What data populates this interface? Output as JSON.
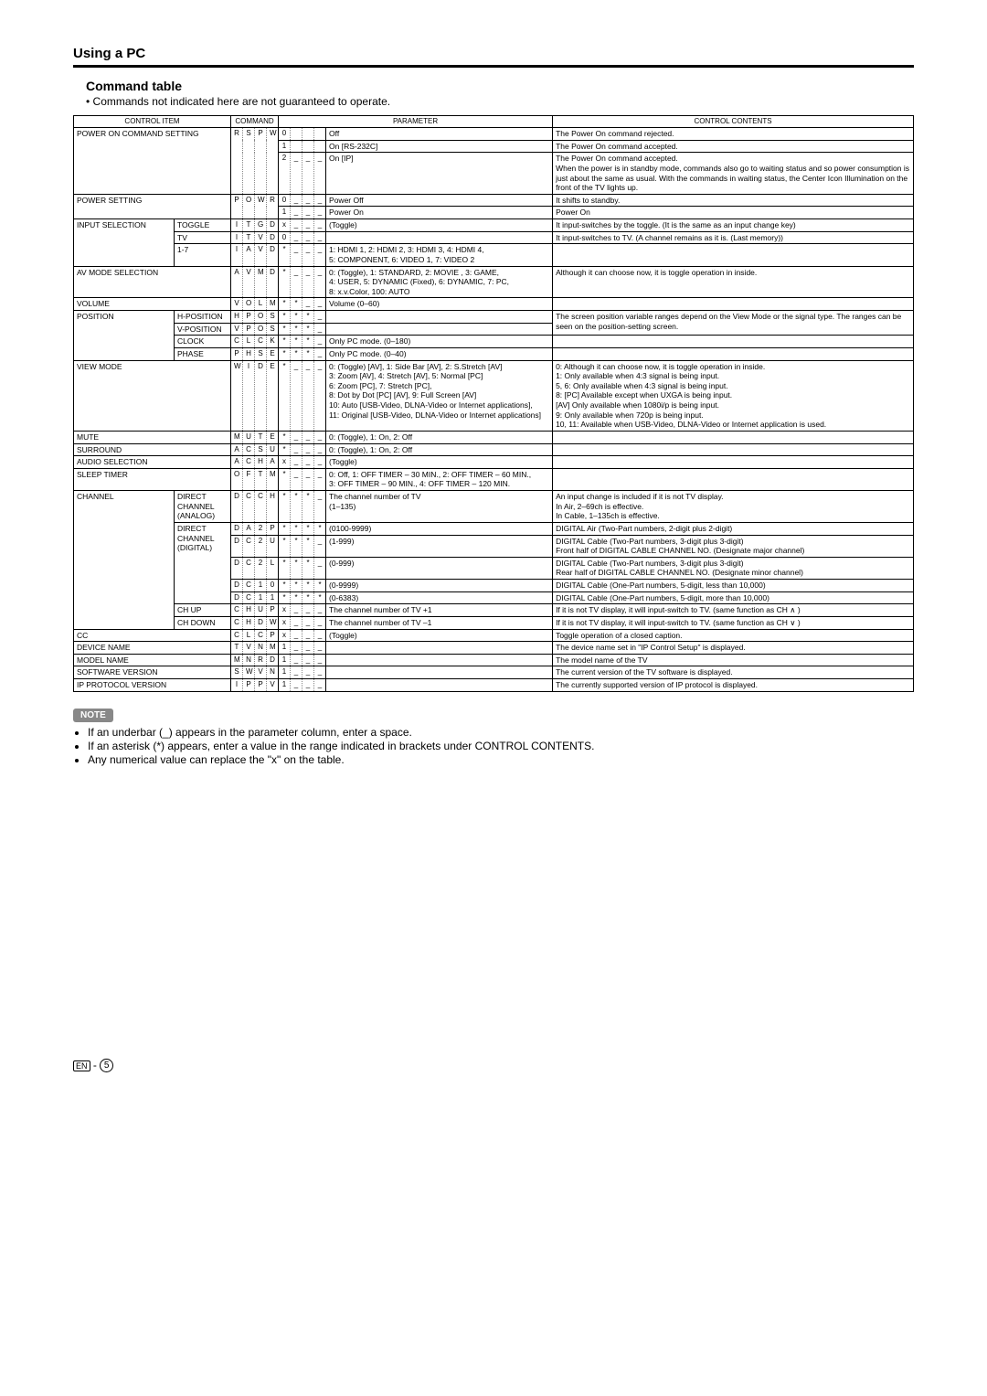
{
  "page": {
    "section_title": "Using a PC",
    "sub_title": "Command table",
    "sub_desc": "• Commands not indicated here are not guaranteed to operate.",
    "note_badge": "NOTE",
    "notes": [
      "If an underbar (_) appears in the parameter column, enter a space.",
      "If an asterisk (*) appears, enter a value in the range indicated in brackets under CONTROL CONTENTS.",
      "Any numerical value can replace the \"x\" on the table."
    ],
    "footer_en": "EN",
    "footer_page": "5"
  },
  "headers": {
    "control_item": "CONTROL ITEM",
    "command": "COMMAND",
    "parameter": "PARAMETER",
    "control_contents": "CONTROL CONTENTS"
  },
  "colwidths": {
    "item1": 110,
    "item2": 62,
    "cmd": 13,
    "desc": 248,
    "contents": 340
  },
  "rows": [
    {
      "i1": "POWER ON COMMAND SETTING",
      "i1rs": 3,
      "i1cs": 2,
      "c": [
        "R",
        "S",
        "P",
        "W"
      ],
      "crs": 3,
      "p": [
        "0",
        "",
        "",
        ""
      ],
      "d": "Off",
      "cc": "The Power On command rejected."
    },
    {
      "p": [
        "1",
        "",
        "",
        ""
      ],
      "d": "On [RS-232C]",
      "cc": "The Power On command accepted."
    },
    {
      "p": [
        "2",
        "_",
        "_",
        "_"
      ],
      "d": "On [IP]",
      "cc": "The Power On command accepted.\nWhen the power is in standby mode, commands also go to waiting status and so power consumption is just about the same as usual. With the commands in waiting status, the Center Icon Illumination on the front of the TV lights up."
    },
    {
      "i1": "POWER SETTING",
      "i1rs": 2,
      "i1cs": 2,
      "c": [
        "P",
        "O",
        "W",
        "R"
      ],
      "crs": 2,
      "p": [
        "0",
        "_",
        "_",
        "_"
      ],
      "d": "Power Off",
      "cc": "It shifts to standby."
    },
    {
      "p": [
        "1",
        "_",
        "_",
        "_"
      ],
      "d": "Power On",
      "cc": "Power On"
    },
    {
      "i1": "INPUT SELECTION",
      "i1rs": 3,
      "i2": "TOGGLE",
      "c": [
        "I",
        "T",
        "G",
        "D"
      ],
      "p": [
        "x",
        "_",
        "_",
        "_"
      ],
      "d": "(Toggle)",
      "cc": "It input-switches by the toggle. (It is the same as an input change key)"
    },
    {
      "i2": "TV",
      "c": [
        "I",
        "T",
        "V",
        "D"
      ],
      "p": [
        "0",
        "_",
        "_",
        "_"
      ],
      "d": "",
      "cc": "It input-switches to TV. (A channel remains as it is. (Last memory))"
    },
    {
      "i2": "1-7",
      "c": [
        "I",
        "A",
        "V",
        "D"
      ],
      "p": [
        "*",
        "_",
        "_",
        "_"
      ],
      "d": "1: HDMI 1, 2: HDMI 2, 3: HDMI 3, 4: HDMI 4,\n5: COMPONENT, 6: VIDEO 1, 7: VIDEO 2",
      "cc": ""
    },
    {
      "i1": "AV MODE SELECTION",
      "i1cs": 2,
      "c": [
        "A",
        "V",
        "M",
        "D"
      ],
      "p": [
        "*",
        "_",
        "_",
        "_"
      ],
      "d": "0: (Toggle), 1: STANDARD, 2: MOVIE , 3: GAME,\n4: USER, 5: DYNAMIC (Fixed), 6: DYNAMIC, 7: PC,\n8: x.v.Color, 100: AUTO",
      "cc": "Although it can choose now, it is toggle operation in inside."
    },
    {
      "i1": "VOLUME",
      "i1cs": 2,
      "c": [
        "V",
        "O",
        "L",
        "M"
      ],
      "p": [
        "*",
        "*",
        "_",
        "_"
      ],
      "d": "Volume (0–60)",
      "cc": ""
    },
    {
      "i1": "POSITION",
      "i1rs": 4,
      "i2": "H-POSITION",
      "c": [
        "H",
        "P",
        "O",
        "S"
      ],
      "p": [
        "*",
        "*",
        "*",
        "_"
      ],
      "d": "",
      "cc": "The screen position variable ranges depend on the View Mode or the signal type. The ranges can be seen on the position-setting screen.",
      "ccrs": 2
    },
    {
      "i2": "V-POSITION",
      "c": [
        "V",
        "P",
        "O",
        "S"
      ],
      "p": [
        "*",
        "*",
        "*",
        "_"
      ],
      "d": ""
    },
    {
      "i2": "CLOCK",
      "c": [
        "C",
        "L",
        "C",
        "K"
      ],
      "p": [
        "*",
        "*",
        "*",
        "_"
      ],
      "d": "Only PC mode. (0–180)",
      "cc": ""
    },
    {
      "i2": "PHASE",
      "c": [
        "P",
        "H",
        "S",
        "E"
      ],
      "p": [
        "*",
        "*",
        "*",
        "_"
      ],
      "d": "Only PC mode. (0–40)",
      "cc": ""
    },
    {
      "i1": "VIEW MODE",
      "i1cs": 2,
      "c": [
        "W",
        "I",
        "D",
        "E"
      ],
      "p": [
        "*",
        "_",
        "_",
        "_"
      ],
      "d": "0: (Toggle) [AV], 1: Side Bar [AV], 2: S.Stretch [AV]\n3: Zoom [AV], 4: Stretch [AV], 5: Normal [PC]\n6: Zoom [PC], 7: Stretch [PC],\n8: Dot by Dot [PC] [AV], 9: Full Screen [AV]\n10: Auto [USB-Video, DLNA-Video or Internet applications],\n11: Original [USB-Video, DLNA-Video or Internet applications]",
      "cc": "0: Although it can choose now, it is toggle operation in inside.\n1: Only available when 4:3 signal is being input.\n5, 6: Only available when 4:3 signal is being input.\n8: [PC] Available except when UXGA is being input.\n[AV] Only available when 1080i/p is being input.\n9: Only available when 720p is being input.\n10, 11: Available when USB-Video, DLNA-Video or Internet application is used."
    },
    {
      "i1": "MUTE",
      "i1cs": 2,
      "c": [
        "M",
        "U",
        "T",
        "E"
      ],
      "p": [
        "*",
        "_",
        "_",
        "_"
      ],
      "d": "0: (Toggle), 1: On, 2: Off",
      "cc": ""
    },
    {
      "i1": "SURROUND",
      "i1cs": 2,
      "c": [
        "A",
        "C",
        "S",
        "U"
      ],
      "p": [
        "*",
        "_",
        "_",
        "_"
      ],
      "d": "0: (Toggle), 1: On, 2: Off",
      "cc": ""
    },
    {
      "i1": "AUDIO SELECTION",
      "i1cs": 2,
      "c": [
        "A",
        "C",
        "H",
        "A"
      ],
      "p": [
        "x",
        "_",
        "_",
        "_"
      ],
      "d": "(Toggle)",
      "cc": ""
    },
    {
      "i1": "SLEEP TIMER",
      "i1cs": 2,
      "c": [
        "O",
        "F",
        "T",
        "M"
      ],
      "p": [
        "*",
        "_",
        "_",
        "_"
      ],
      "d": "0: Off, 1: OFF TIMER – 30 MIN., 2: OFF TIMER – 60 MIN.,\n3: OFF TIMER – 90 MIN., 4: OFF TIMER – 120 MIN.",
      "cc": ""
    },
    {
      "i1": "CHANNEL",
      "i1rs": 8,
      "i2": "DIRECT CHANNEL (ANALOG)",
      "c": [
        "D",
        "C",
        "C",
        "H"
      ],
      "p": [
        "*",
        "*",
        "*",
        "_"
      ],
      "d": "The channel number of TV\n(1–135)",
      "cc": "An input change is included if it is not TV display.\nIn Air, 2–69ch is effective.\nIn Cable, 1–135ch is effective."
    },
    {
      "i2": "DIRECT CHANNEL (DIGITAL)",
      "i2rs": 5,
      "c": [
        "D",
        "A",
        "2",
        "P"
      ],
      "p": [
        "*",
        "*",
        "*",
        "*"
      ],
      "d": "(0100-9999)",
      "cc": "DIGITAL Air (Two-Part numbers, 2-digit plus 2-digit)"
    },
    {
      "c": [
        "D",
        "C",
        "2",
        "U"
      ],
      "p": [
        "*",
        "*",
        "*",
        "_"
      ],
      "d": "(1-999)",
      "cc": "DIGITAL Cable (Two-Part numbers, 3-digit plus 3-digit)\nFront half of DIGITAL CABLE CHANNEL NO. (Designate major channel)"
    },
    {
      "c": [
        "D",
        "C",
        "2",
        "L"
      ],
      "p": [
        "*",
        "*",
        "*",
        "_"
      ],
      "d": "(0-999)",
      "cc": "DIGITAL Cable (Two-Part numbers, 3-digit plus 3-digit)\nRear half of DIGITAL CABLE CHANNEL NO. (Designate minor channel)"
    },
    {
      "c": [
        "D",
        "C",
        "1",
        "0"
      ],
      "p": [
        "*",
        "*",
        "*",
        "*"
      ],
      "d": "(0-9999)",
      "cc": "DIGITAL Cable (One-Part numbers, 5-digit, less than 10,000)"
    },
    {
      "c": [
        "D",
        "C",
        "1",
        "1"
      ],
      "p": [
        "*",
        "*",
        "*",
        "*"
      ],
      "d": "(0-6383)",
      "cc": "DIGITAL Cable (One-Part numbers, 5-digit, more than 10,000)"
    },
    {
      "i2": "CH UP",
      "c": [
        "C",
        "H",
        "U",
        "P"
      ],
      "p": [
        "x",
        "_",
        "_",
        "_"
      ],
      "d": "The channel number of TV +1",
      "cc": "If it is not TV display, it will input-switch to TV. (same function as CH ∧ )"
    },
    {
      "i2": "CH DOWN",
      "c": [
        "C",
        "H",
        "D",
        "W"
      ],
      "p": [
        "x",
        "_",
        "_",
        "_"
      ],
      "d": "The channel number of TV –1",
      "cc": "If it is not TV display, it will input-switch to TV. (same function as CH ∨ )"
    },
    {
      "i1": "CC",
      "i1cs": 2,
      "c": [
        "C",
        "L",
        "C",
        "P"
      ],
      "p": [
        "x",
        "_",
        "_",
        "_"
      ],
      "d": "(Toggle)",
      "cc": "Toggle operation of a closed caption."
    },
    {
      "i1": "DEVICE NAME",
      "i1cs": 2,
      "c": [
        "T",
        "V",
        "N",
        "M"
      ],
      "p": [
        "1",
        "_",
        "_",
        "_"
      ],
      "d": "",
      "cc": "The device name set in \"IP Control Setup\" is displayed."
    },
    {
      "i1": "MODEL NAME",
      "i1cs": 2,
      "c": [
        "M",
        "N",
        "R",
        "D"
      ],
      "p": [
        "1",
        "_",
        "_",
        "_"
      ],
      "d": "",
      "cc": "The model name of the TV"
    },
    {
      "i1": "SOFTWARE VERSION",
      "i1cs": 2,
      "c": [
        "S",
        "W",
        "V",
        "N"
      ],
      "p": [
        "1",
        "_",
        "_",
        "_"
      ],
      "d": "",
      "cc": "The current version of the TV software is displayed."
    },
    {
      "i1": "IP PROTOCOL VERSION",
      "i1cs": 2,
      "c": [
        "I",
        "P",
        "P",
        "V"
      ],
      "p": [
        "1",
        "_",
        "_",
        "_"
      ],
      "d": "",
      "cc": "The currently supported version of IP protocol is displayed."
    }
  ]
}
